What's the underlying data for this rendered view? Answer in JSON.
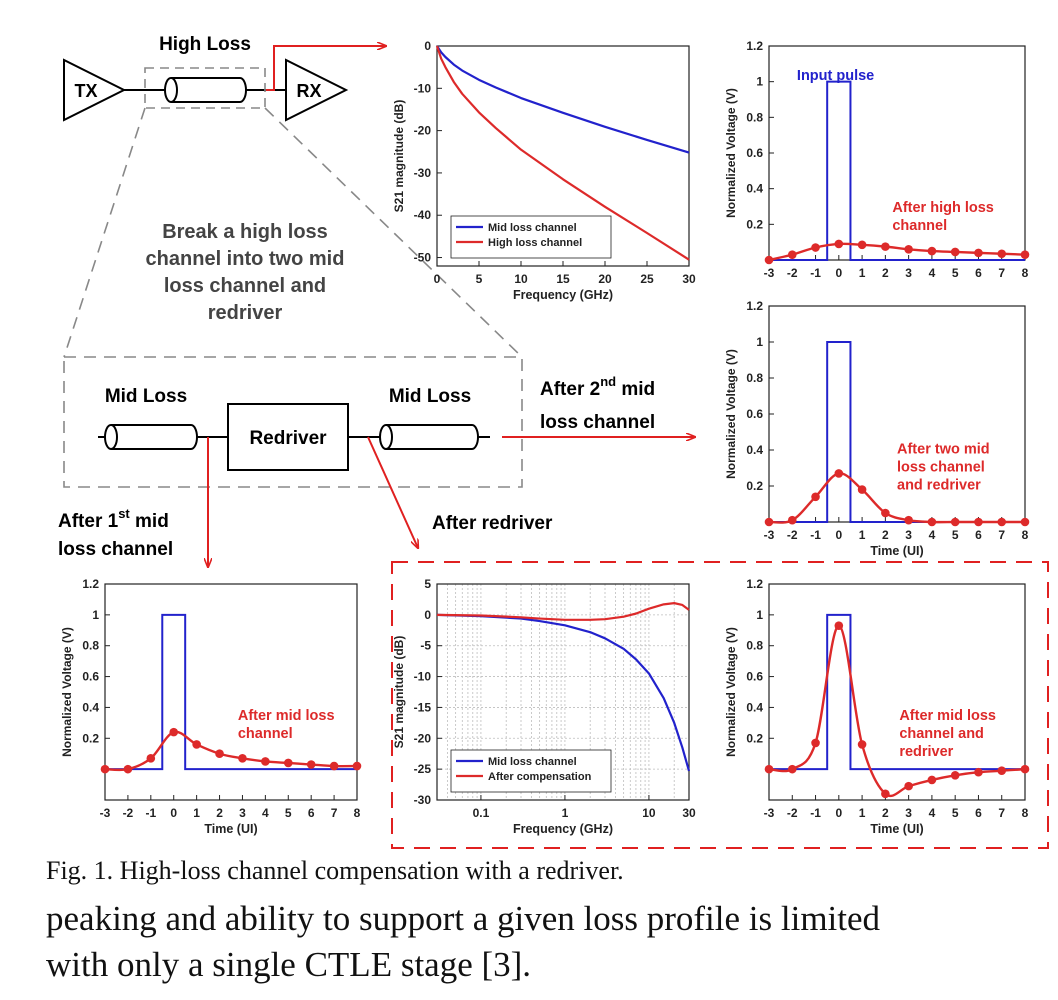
{
  "figure": {
    "caption": "Fig. 1. High-loss channel compensation with a redriver.",
    "body_text": [
      "peaking and ability to support a given loss profile is limited",
      "with only a single CTLE stage [3]."
    ],
    "schematic": {
      "top_label": "High Loss",
      "tx": "TX",
      "rx": "RX",
      "break_text": [
        "Break a high loss",
        "channel into two mid",
        "loss channel and",
        "redriver"
      ],
      "mid_loss_left": "Mid Loss",
      "mid_loss_right": "Mid Loss",
      "redriver": "Redriver",
      "after_first": {
        "prefix": "After 1",
        "sup": "st",
        "suffix": " mid",
        "line2": "loss channel"
      },
      "after_second": {
        "prefix": "After 2",
        "sup": "nd",
        "suffix": "  mid",
        "line2": "loss channel"
      },
      "after_redriver": "After redriver"
    },
    "colors": {
      "blue": "#2222cc",
      "red": "#dd2a2a",
      "arrow": "#e02020",
      "dash": "#888888"
    }
  },
  "chart_data": [
    {
      "id": "s21-loss",
      "type": "line",
      "xlabel": "Frequency (GHz)",
      "ylabel": "S21 magnitude (dB)",
      "xlim": [
        0,
        30
      ],
      "ylim": [
        -52,
        0
      ],
      "xticks": [
        0,
        5,
        10,
        15,
        20,
        25,
        30
      ],
      "yticks": [
        0,
        -10,
        -20,
        -30,
        -40,
        -50
      ],
      "grid": false,
      "legend": "bottom-left",
      "series": [
        {
          "name": "Mid loss channel",
          "color": "#2222cc",
          "x": [
            0,
            0.5,
            1,
            2,
            3,
            5,
            7,
            10,
            15,
            20,
            25,
            30
          ],
          "y": [
            0,
            -1.5,
            -2.6,
            -4.4,
            -5.8,
            -8,
            -9.8,
            -12.3,
            -15.8,
            -19.1,
            -22.2,
            -25.2
          ]
        },
        {
          "name": "High loss channel",
          "color": "#dd2a2a",
          "x": [
            0,
            0.5,
            1,
            2,
            3,
            5,
            7,
            10,
            15,
            20,
            25,
            30
          ],
          "y": [
            0,
            -3,
            -5,
            -8.5,
            -11.3,
            -15.7,
            -19.4,
            -24.5,
            -31.5,
            -38,
            -44.2,
            -50.5
          ]
        }
      ]
    },
    {
      "id": "pulse-high-loss",
      "type": "line",
      "xlabel": "",
      "ylabel": "Normalized Voltage (V)",
      "xlim": [
        -3,
        8
      ],
      "ylim": [
        0,
        1.2
      ],
      "xticks": [
        -3,
        -2,
        -1,
        0,
        1,
        2,
        3,
        4,
        5,
        6,
        7,
        8
      ],
      "yticks": [
        0.2,
        0.4,
        0.6,
        0.8,
        1,
        1.2
      ],
      "grid": false,
      "annotations": [
        {
          "lines": [
            "Input pulse"
          ],
          "color": "#2222cc",
          "at": [
            -1.8,
            1.01
          ]
        },
        {
          "lines": [
            "After high loss",
            "channel"
          ],
          "color": "#dd2a2a",
          "at": [
            2.3,
            0.27
          ]
        }
      ],
      "series": [
        {
          "name": "Input pulse",
          "color": "#2222cc",
          "style": "pulse",
          "x": [
            -3,
            -0.5,
            -0.5,
            0.5,
            0.5,
            8
          ],
          "y": [
            0,
            0,
            1,
            1,
            0,
            0
          ]
        },
        {
          "name": "After high loss channel",
          "color": "#dd2a2a",
          "style": "markers",
          "x": [
            -3,
            -2,
            -1,
            0,
            1,
            2,
            3,
            4,
            5,
            6,
            7,
            8
          ],
          "y": [
            0.0,
            0.03,
            0.07,
            0.09,
            0.085,
            0.075,
            0.06,
            0.05,
            0.045,
            0.04,
            0.035,
            0.03
          ]
        }
      ]
    },
    {
      "id": "pulse-two-mid",
      "type": "line",
      "xlabel": "Time (UI)",
      "ylabel": "Normalized Voltage (V)",
      "xlim": [
        -3,
        8
      ],
      "ylim": [
        0,
        1.2
      ],
      "xticks": [
        -3,
        -2,
        -1,
        0,
        1,
        2,
        3,
        4,
        5,
        6,
        7,
        8
      ],
      "yticks": [
        0.2,
        0.4,
        0.6,
        0.8,
        1,
        1.2
      ],
      "grid": false,
      "annotations": [
        {
          "lines": [
            "After two mid",
            "loss channel",
            "and redriver"
          ],
          "color": "#dd2a2a",
          "at": [
            2.5,
            0.38
          ]
        }
      ],
      "series": [
        {
          "name": "Input pulse",
          "color": "#2222cc",
          "style": "pulse",
          "x": [
            -3,
            -0.5,
            -0.5,
            0.5,
            0.5,
            8
          ],
          "y": [
            0,
            0,
            1,
            1,
            0,
            0
          ]
        },
        {
          "name": "After two mid loss channel and redriver",
          "color": "#dd2a2a",
          "style": "markers",
          "x": [
            -3,
            -2,
            -1,
            0,
            1,
            2,
            3,
            4,
            5,
            6,
            7,
            8
          ],
          "y": [
            0.0,
            0.01,
            0.14,
            0.27,
            0.18,
            0.05,
            0.01,
            0.0,
            0.0,
            0.0,
            0.0,
            0.0
          ]
        }
      ]
    },
    {
      "id": "pulse-mid-loss",
      "type": "line",
      "xlabel": "Time (UI)",
      "ylabel": "Normalized Voltage (V)",
      "xlim": [
        -3,
        8
      ],
      "ylim": [
        -0.2,
        1.2
      ],
      "xticks": [
        -3,
        -2,
        -1,
        0,
        1,
        2,
        3,
        4,
        5,
        6,
        7,
        8
      ],
      "yticks": [
        0.2,
        0.4,
        0.6,
        0.8,
        1,
        1.2
      ],
      "grid": false,
      "annotations": [
        {
          "lines": [
            "After mid loss",
            "channel"
          ],
          "color": "#dd2a2a",
          "at": [
            2.8,
            0.32
          ]
        }
      ],
      "series": [
        {
          "name": "Input pulse",
          "color": "#2222cc",
          "style": "pulse",
          "x": [
            -3,
            -0.5,
            -0.5,
            0.5,
            0.5,
            8
          ],
          "y": [
            0,
            0,
            1,
            1,
            0,
            0
          ]
        },
        {
          "name": "After mid loss channel",
          "color": "#dd2a2a",
          "style": "markers",
          "x": [
            -3,
            -2,
            -1,
            0,
            1,
            2,
            3,
            4,
            5,
            6,
            7,
            8
          ],
          "y": [
            0.0,
            0.0,
            0.07,
            0.24,
            0.16,
            0.1,
            0.07,
            0.05,
            0.04,
            0.03,
            0.02,
            0.02
          ]
        }
      ]
    },
    {
      "id": "s21-compensation",
      "type": "line",
      "xscale": "log",
      "xlabel": "Frequency (GHz)",
      "ylabel": "S21 magnitude (dB)",
      "xlim": [
        0.03,
        30
      ],
      "ylim": [
        -30,
        5
      ],
      "xticks": [
        0.1,
        1,
        10,
        30
      ],
      "yticks": [
        5,
        0,
        -5,
        -10,
        -15,
        -20,
        -25,
        -30
      ],
      "grid": true,
      "legend": "bottom-left",
      "series": [
        {
          "name": "Mid loss channel",
          "color": "#2222cc",
          "x": [
            0.03,
            0.1,
            0.3,
            0.5,
            1,
            2,
            3,
            5,
            7,
            10,
            15,
            20,
            25,
            30
          ],
          "y": [
            0,
            -0.2,
            -0.6,
            -1,
            -1.7,
            -2.8,
            -3.8,
            -5.5,
            -7.2,
            -9.5,
            -13.5,
            -17.5,
            -21.5,
            -25.3
          ]
        },
        {
          "name": "After compensation",
          "color": "#dd2a2a",
          "x": [
            0.03,
            0.1,
            0.3,
            0.5,
            1,
            2,
            3,
            5,
            7,
            10,
            15,
            20,
            25,
            30
          ],
          "y": [
            0,
            -0.1,
            -0.4,
            -0.6,
            -0.8,
            -0.8,
            -0.7,
            -0.3,
            0.2,
            1,
            1.7,
            1.9,
            1.6,
            0.8
          ]
        }
      ]
    },
    {
      "id": "pulse-mid-redriver",
      "type": "line",
      "xlabel": "Time (UI)",
      "ylabel": "Normalized Voltage (V)",
      "xlim": [
        -3,
        8
      ],
      "ylim": [
        -0.2,
        1.2
      ],
      "xticks": [
        -3,
        -2,
        -1,
        0,
        1,
        2,
        3,
        4,
        5,
        6,
        7,
        8
      ],
      "yticks": [
        0.2,
        0.4,
        0.6,
        0.8,
        1,
        1.2
      ],
      "grid": false,
      "annotations": [
        {
          "lines": [
            "After mid loss",
            "channel and",
            "redriver"
          ],
          "color": "#dd2a2a",
          "at": [
            2.6,
            0.32
          ]
        }
      ],
      "series": [
        {
          "name": "Input pulse",
          "color": "#2222cc",
          "style": "pulse",
          "x": [
            -3,
            -0.5,
            -0.5,
            0.5,
            0.5,
            8
          ],
          "y": [
            0,
            0,
            1,
            1,
            0,
            0
          ]
        },
        {
          "name": "After mid loss channel and redriver",
          "color": "#dd2a2a",
          "style": "markers",
          "x": [
            -3,
            -2,
            -1,
            0,
            1,
            2,
            3,
            4,
            5,
            6,
            7,
            8
          ],
          "y": [
            0.0,
            0.0,
            0.17,
            0.93,
            0.16,
            -0.16,
            -0.11,
            -0.07,
            -0.04,
            -0.02,
            -0.01,
            0.0
          ]
        }
      ]
    }
  ]
}
